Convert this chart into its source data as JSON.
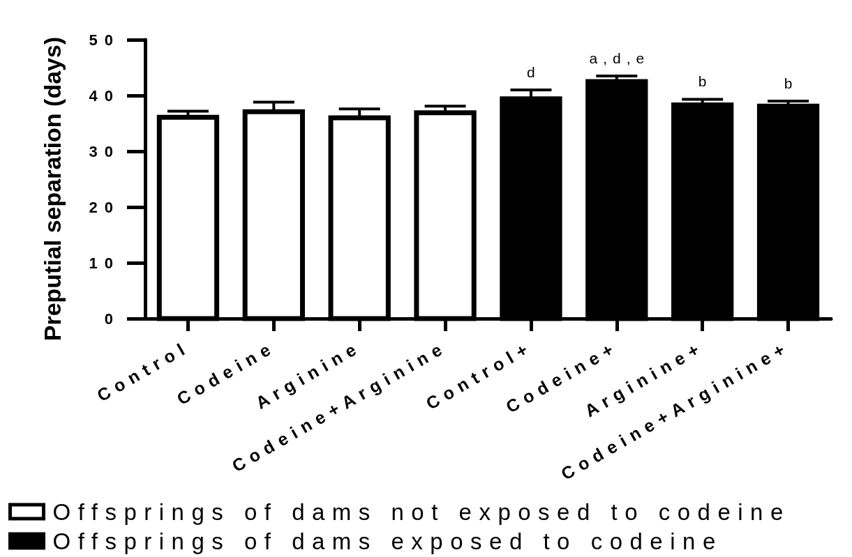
{
  "chart_data": {
    "type": "bar",
    "ylabel": "Preputial separation (days)",
    "categories": [
      "Control",
      "Codeine",
      "Arginine",
      "Codeine+Arginine",
      "Control+",
      "Codeine+",
      "Arginine+",
      "Codeine+Arginine+"
    ],
    "series": [
      {
        "name": "Offsprings of dams not exposed to codeine",
        "color": "#ffffff",
        "values": [
          36.1,
          37.1,
          36.0,
          36.9,
          null,
          null,
          null,
          null
        ],
        "errors": [
          [
            36.1,
            37.2
          ],
          [
            37.1,
            38.8
          ],
          [
            36.0,
            37.6
          ],
          [
            36.9,
            38.1
          ],
          null,
          null,
          null,
          null
        ]
      },
      {
        "name": "Offsprings of dams exposed to codeine",
        "color": "#000000",
        "values": [
          null,
          null,
          null,
          null,
          39.4,
          42.5,
          38.3,
          38.1
        ],
        "errors": [
          null,
          null,
          null,
          null,
          [
            39.4,
            41.0
          ],
          [
            42.5,
            43.5
          ],
          [
            38.3,
            39.3
          ],
          [
            38.1,
            39.0
          ]
        ]
      }
    ],
    "ylim": [
      0,
      50
    ],
    "yticks": [
      0,
      10,
      20,
      30,
      40,
      50
    ],
    "legend": "bottom left",
    "annotations": [
      {
        "text": "d",
        "x": "Control+",
        "y": 39.4
      },
      {
        "text": "a,d,e",
        "x": "Codeine+",
        "y": 42.5
      },
      {
        "text": "b",
        "x": "Arginine+",
        "y": 38.3
      },
      {
        "text": "b",
        "x": "Codeine+Arginine+",
        "y": 38.1
      }
    ]
  }
}
